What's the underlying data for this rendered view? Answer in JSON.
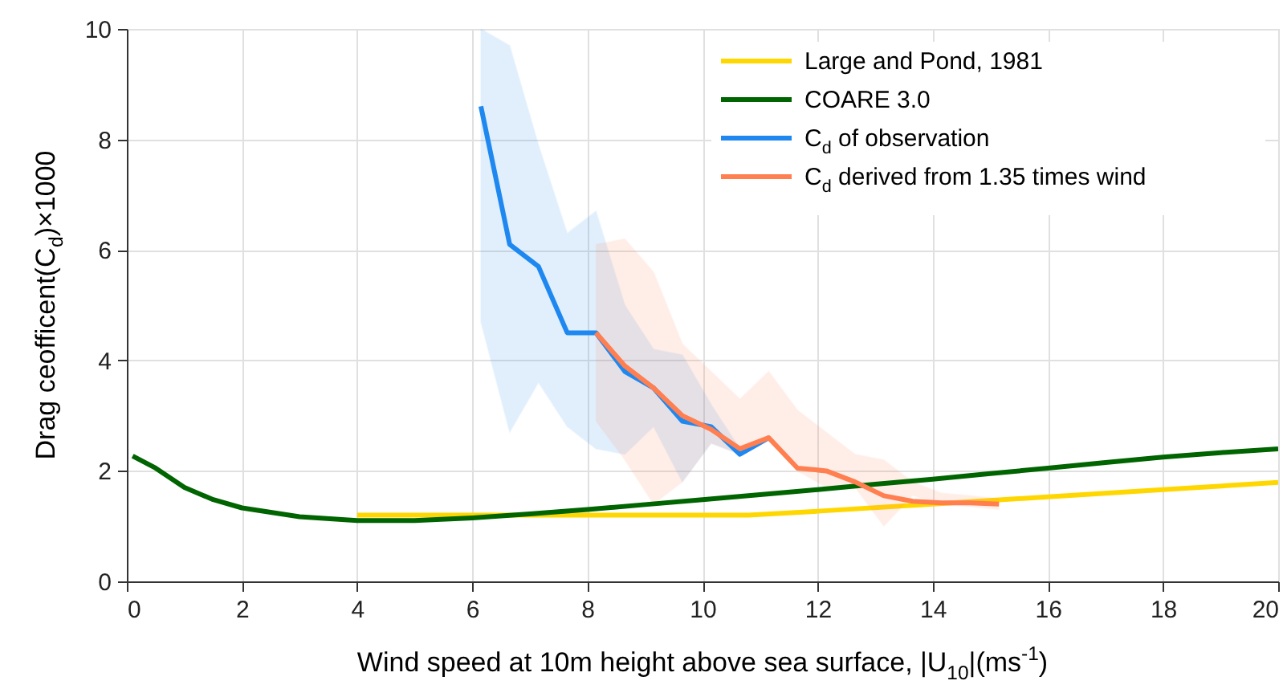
{
  "chart_data": {
    "type": "line",
    "xlabel": "Wind speed at 10m height above sea surface, |U$_{10}$|(ms$^{-1}$)",
    "ylabel": "Drag ceofficent(C$_{d}$)×1000",
    "xlim": [
      0,
      20
    ],
    "ylim": [
      0,
      10
    ],
    "xticks": [
      0,
      2,
      4,
      6,
      8,
      10,
      12,
      14,
      16,
      18,
      20
    ],
    "yticks": [
      0,
      2,
      4,
      6,
      8,
      10
    ],
    "grid": true,
    "legend": "top right",
    "line_style": "solid",
    "marker": "none",
    "series": [
      {
        "name": "Large and Pond, 1981",
        "color": "#ffd700",
        "x": [
          4,
          10.8,
          12,
          14,
          16,
          18,
          20
        ],
        "values": [
          1.2,
          1.2,
          1.27,
          1.4,
          1.53,
          1.66,
          1.79
        ]
      },
      {
        "name": "COARE 3.0",
        "color": "#006400",
        "x": [
          0.1,
          0.5,
          1,
          1.5,
          2,
          3,
          4,
          5,
          6,
          7,
          8,
          9,
          10,
          11,
          12,
          13,
          14,
          15,
          16,
          17,
          18,
          19,
          20
        ],
        "values": [
          2.27,
          2.05,
          1.7,
          1.48,
          1.33,
          1.17,
          1.1,
          1.1,
          1.15,
          1.22,
          1.3,
          1.39,
          1.48,
          1.57,
          1.66,
          1.76,
          1.85,
          1.95,
          2.05,
          2.15,
          2.25,
          2.33,
          2.4
        ]
      },
      {
        "name": "C$_{d}$ of observation",
        "color": "#1e88f0",
        "x": [
          6.15,
          6.65,
          7.15,
          7.65,
          8.15,
          8.65,
          9.15,
          9.65,
          10.15,
          10.65,
          11.15
        ],
        "values": [
          8.6,
          6.1,
          5.7,
          4.5,
          4.5,
          3.8,
          3.5,
          2.9,
          2.8,
          2.3,
          2.6
        ],
        "lower": [
          4.7,
          2.7,
          3.6,
          2.8,
          2.4,
          2.3,
          2.8,
          1.8,
          2.5,
          2.3,
          2.6
        ],
        "upper": [
          10,
          9.7,
          7.9,
          6.3,
          6.7,
          5.0,
          4.2,
          4.1,
          3.2,
          2.4,
          2.6
        ]
      },
      {
        "name": "C$_{d}$ derived from 1.35 times wind",
        "color": "#ff7f50",
        "x": [
          8.15,
          8.65,
          9.15,
          9.65,
          10.15,
          10.65,
          11.15,
          11.65,
          12.15,
          12.65,
          13.15,
          13.65,
          14.15,
          14.65,
          15.15
        ],
        "values": [
          4.5,
          3.9,
          3.5,
          3.0,
          2.75,
          2.4,
          2.6,
          2.05,
          2.0,
          1.8,
          1.55,
          1.45,
          1.42,
          1.42,
          1.4
        ],
        "lower": [
          2.9,
          2.2,
          1.4,
          1.8,
          2.5,
          2.3,
          2.6,
          2.0,
          1.7,
          1.7,
          1.0,
          1.55,
          1.4,
          1.35,
          1.3
        ],
        "upper": [
          6.1,
          6.2,
          5.6,
          4.3,
          3.8,
          3.3,
          3.8,
          3.1,
          2.7,
          2.3,
          2.2,
          1.8,
          1.6,
          1.55,
          1.5
        ]
      }
    ]
  }
}
